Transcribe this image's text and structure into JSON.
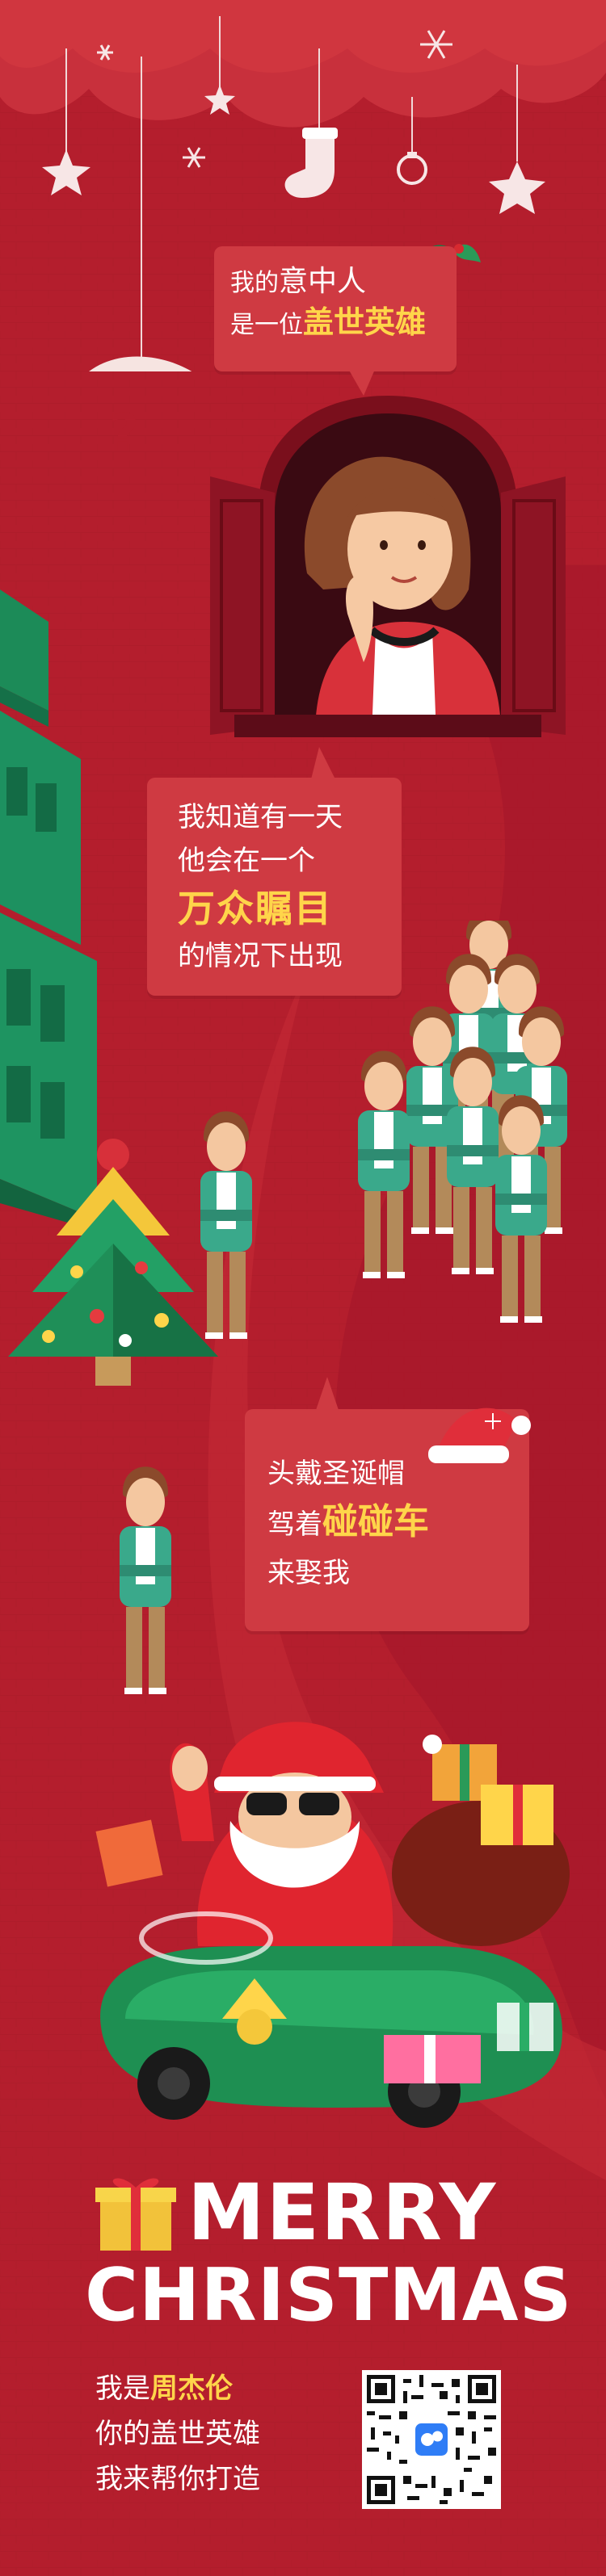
{
  "speech": {
    "b1": {
      "prefix": "我的",
      "mid": "意中人",
      "line2_prefix": "是一位",
      "line2_highlight": "盖世英雄"
    },
    "b2": {
      "line1": "我知道有一天",
      "line2": "他会在一个",
      "highlight": "万众瞩目",
      "line4": "的情况下出现"
    },
    "b3": {
      "line1": "头戴圣诞帽",
      "line2_prefix": "驾着",
      "line2_highlight": "碰碰车",
      "line3": "来娶我"
    }
  },
  "mystery_mark": "?",
  "greeting": {
    "line1": "MERRY",
    "line2": "CHRISTMAS"
  },
  "footer": {
    "line1_prefix": "我是",
    "line1_name": "周杰伦",
    "line2": "你的盖世英雄",
    "line3": "我来帮你打造"
  },
  "colors": {
    "background": "#b41e2d",
    "bubble": "#cf3a42",
    "highlight": "#ffd54a",
    "tree_green": "#1f8a5a",
    "car_green": "#1e8f52"
  },
  "icons": [
    "snowflake-icon",
    "star-icon",
    "stocking-icon",
    "ornament-icon",
    "holly-icon",
    "cupid-icon",
    "christmas-tree-icon",
    "gift-box-icon",
    "santa-hat-icon",
    "qr-code"
  ]
}
